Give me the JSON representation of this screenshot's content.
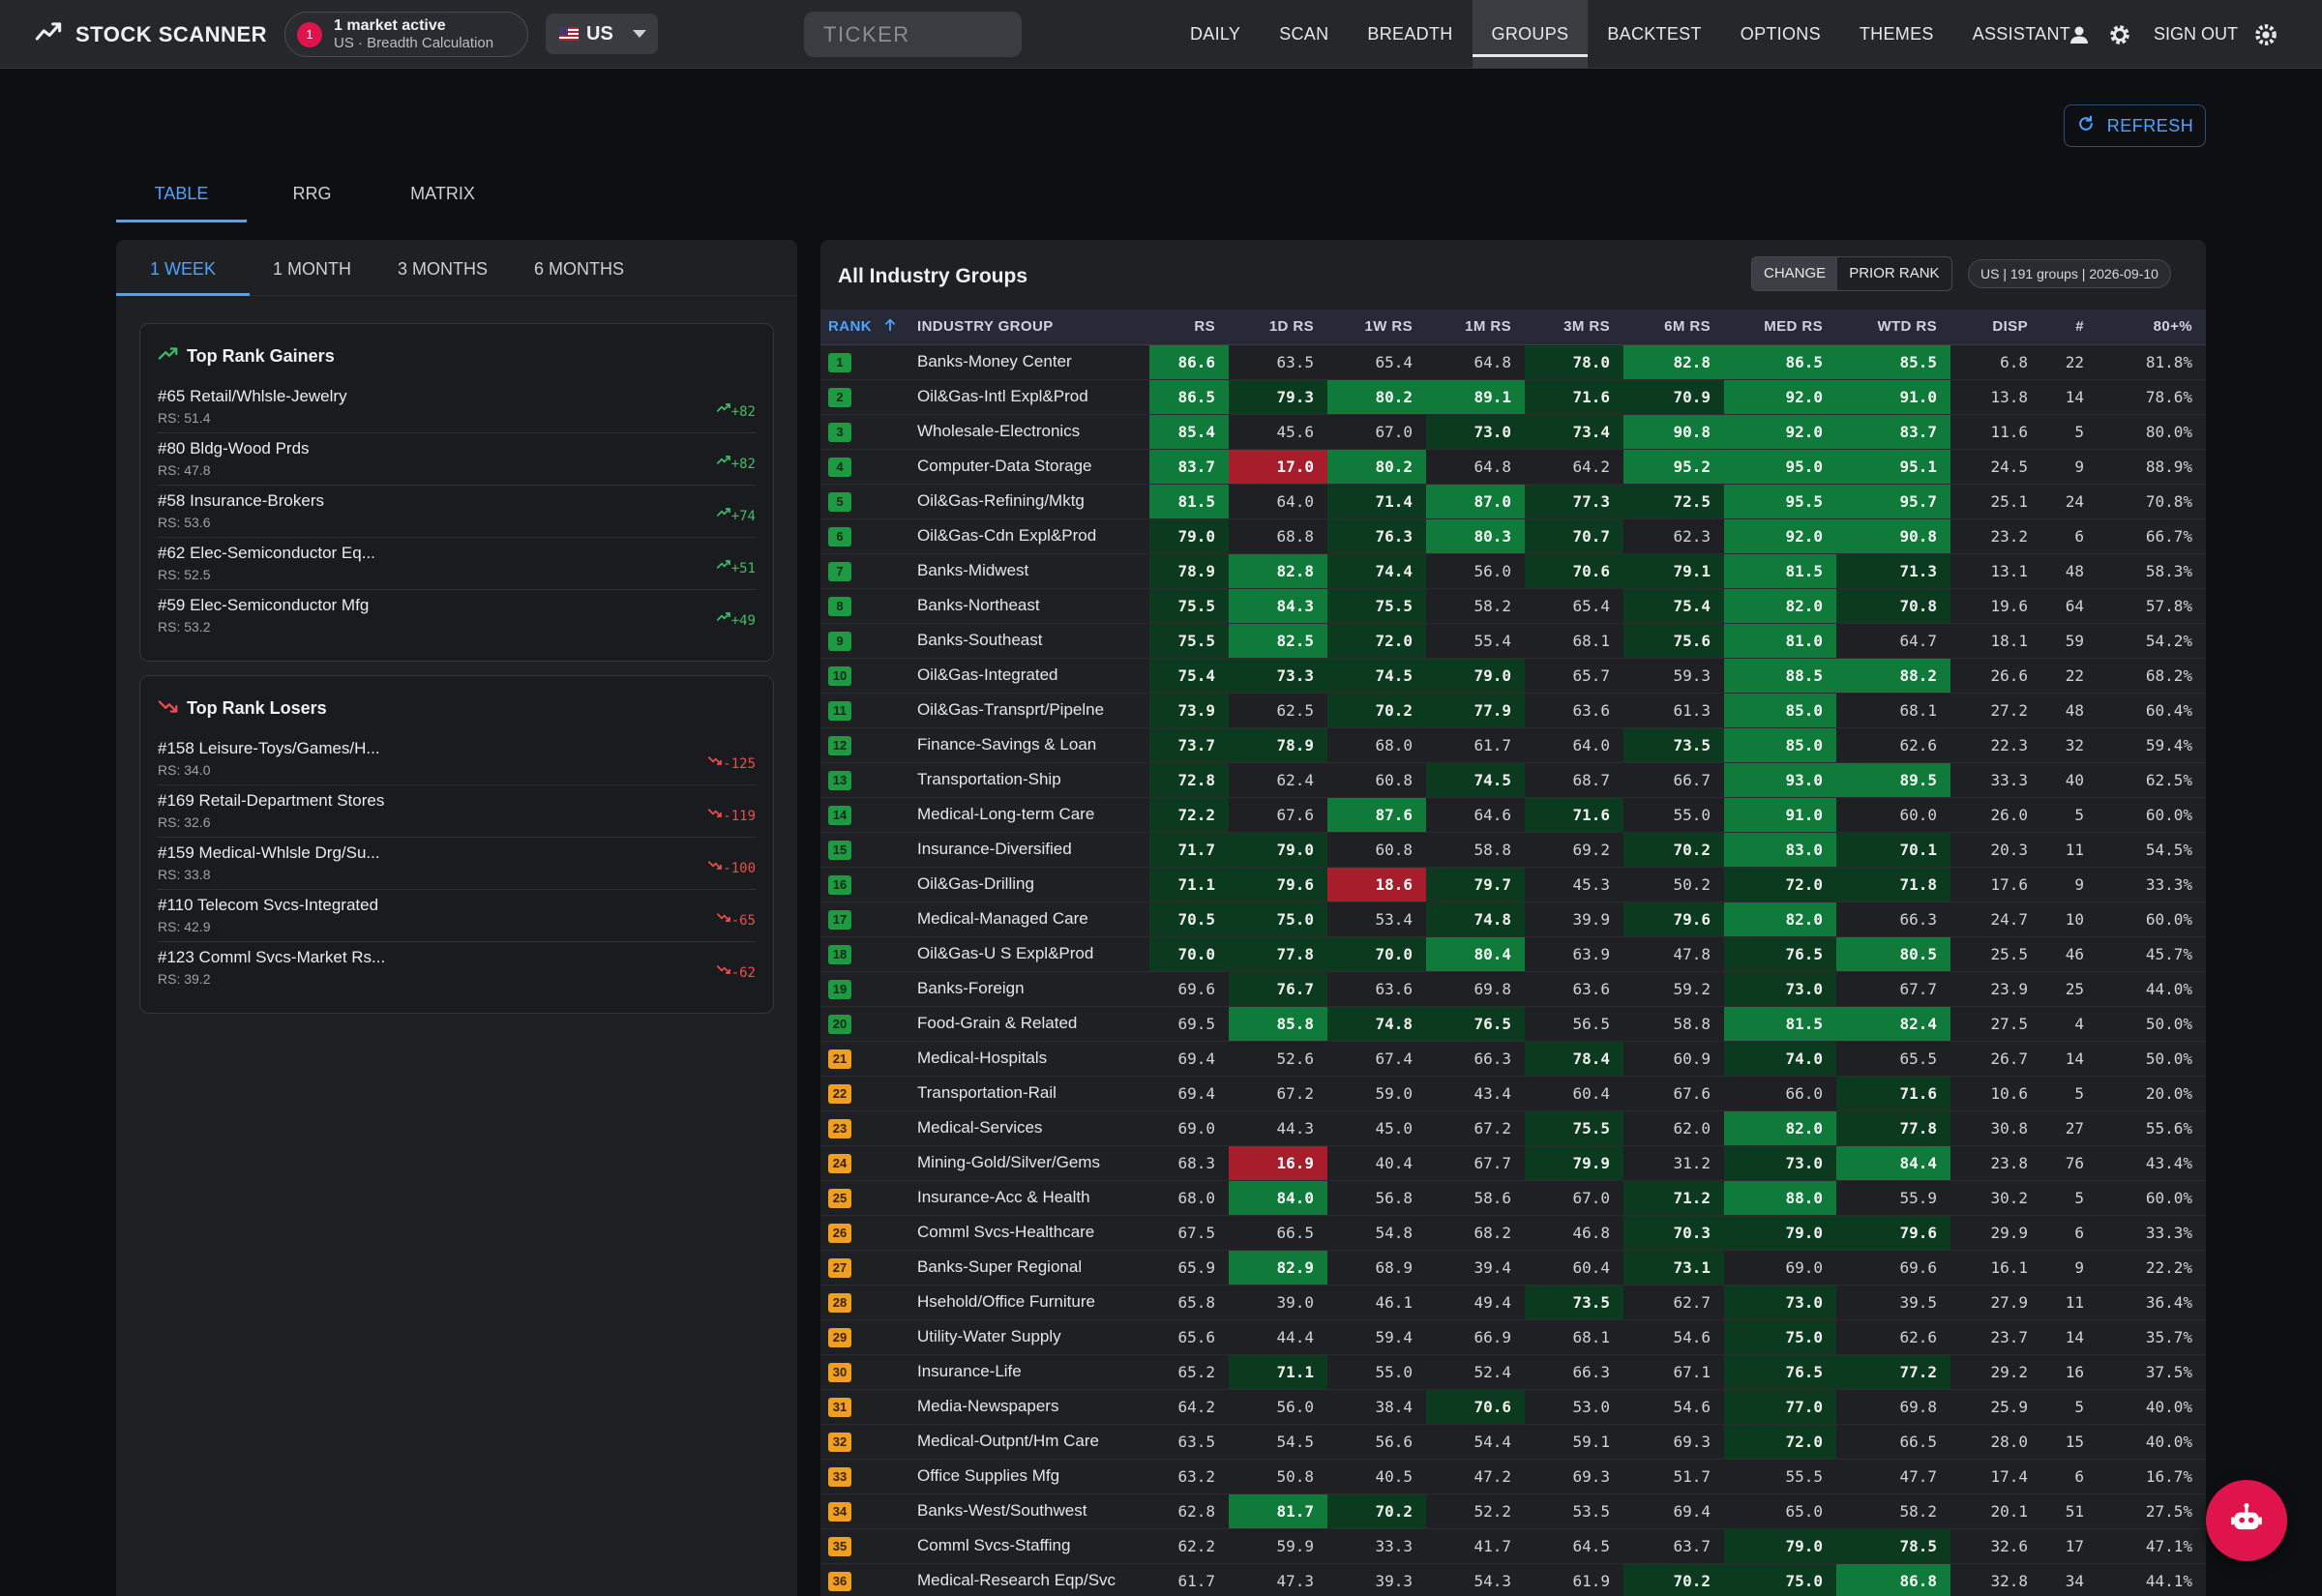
{
  "brand": {
    "title": "STOCK SCANNER"
  },
  "market_status": {
    "count": "1",
    "line1": "1 market active",
    "line2": "US · Breadth Calculation"
  },
  "country": {
    "selected": "US"
  },
  "search": {
    "placeholder": "TICKER",
    "value": ""
  },
  "nav": {
    "items": [
      {
        "label": "DAILY",
        "active": false
      },
      {
        "label": "SCAN",
        "active": false
      },
      {
        "label": "BREADTH",
        "active": false
      },
      {
        "label": "GROUPS",
        "active": true
      },
      {
        "label": "BACKTEST",
        "active": false
      },
      {
        "label": "OPTIONS",
        "active": false
      },
      {
        "label": "THEMES",
        "active": false
      },
      {
        "label": "ASSISTANT",
        "active": false
      }
    ],
    "sign_out": "SIGN OUT"
  },
  "refresh": {
    "label": "REFRESH"
  },
  "main_tabs": [
    {
      "label": "TABLE",
      "active": true
    },
    {
      "label": "RRG",
      "active": false
    },
    {
      "label": "MATRIX",
      "active": false
    }
  ],
  "period_tabs": [
    {
      "label": "1 WEEK",
      "active": true
    },
    {
      "label": "1 MONTH",
      "active": false
    },
    {
      "label": "3 MONTHS",
      "active": false
    },
    {
      "label": "6 MONTHS",
      "active": false
    }
  ],
  "gainers": {
    "title": "Top Rank Gainers",
    "items": [
      {
        "name": "#65 Retail/Whlsle-Jewelry",
        "rs": "RS: 51.4",
        "change": "+82"
      },
      {
        "name": "#80 Bldg-Wood Prds",
        "rs": "RS: 47.8",
        "change": "+82"
      },
      {
        "name": "#58 Insurance-Brokers",
        "rs": "RS: 53.6",
        "change": "+74"
      },
      {
        "name": "#62 Elec-Semiconductor Eq...",
        "rs": "RS: 52.5",
        "change": "+51"
      },
      {
        "name": "#59 Elec-Semiconductor Mfg",
        "rs": "RS: 53.2",
        "change": "+49"
      }
    ]
  },
  "losers": {
    "title": "Top Rank Losers",
    "items": [
      {
        "name": "#158 Leisure-Toys/Games/H...",
        "rs": "RS: 34.0",
        "change": "-125"
      },
      {
        "name": "#169 Retail-Department Stores",
        "rs": "RS: 32.6",
        "change": "-119"
      },
      {
        "name": "#159 Medical-Whlsle Drg/Su...",
        "rs": "RS: 33.8",
        "change": "-100"
      },
      {
        "name": "#110 Telecom Svcs-Integrated",
        "rs": "RS: 42.9",
        "change": "-65"
      },
      {
        "name": "#123 Comml Svcs-Market Rs...",
        "rs": "RS: 39.2",
        "change": "-62"
      }
    ]
  },
  "groups_table": {
    "title": "All Industry Groups",
    "toggle": [
      "CHANGE",
      "PRIOR RANK"
    ],
    "toggle_active": "CHANGE",
    "meta": "US | 191 groups | 2026-09-10",
    "columns": [
      "RANK",
      "INDUSTRY GROUP",
      "RS",
      "1D RS",
      "1W RS",
      "1M RS",
      "3M RS",
      "6M RS",
      "MED RS",
      "WTD RS",
      "DISP",
      "#",
      "80+%"
    ],
    "rows": [
      [
        "1",
        "Banks-Money Center",
        "86.6",
        "63.5",
        "65.4",
        "64.8",
        "78.0",
        "82.8",
        "86.5",
        "85.5",
        "6.8",
        "22",
        "81.8%"
      ],
      [
        "2",
        "Oil&Gas-Intl Expl&Prod",
        "86.5",
        "79.3",
        "80.2",
        "89.1",
        "71.6",
        "70.9",
        "92.0",
        "91.0",
        "13.8",
        "14",
        "78.6%"
      ],
      [
        "3",
        "Wholesale-Electronics",
        "85.4",
        "45.6",
        "67.0",
        "73.0",
        "73.4",
        "90.8",
        "92.0",
        "83.7",
        "11.6",
        "5",
        "80.0%"
      ],
      [
        "4",
        "Computer-Data Storage",
        "83.7",
        "17.0",
        "80.2",
        "64.8",
        "64.2",
        "95.2",
        "95.0",
        "95.1",
        "24.5",
        "9",
        "88.9%"
      ],
      [
        "5",
        "Oil&Gas-Refining/Mktg",
        "81.5",
        "64.0",
        "71.4",
        "87.0",
        "77.3",
        "72.5",
        "95.5",
        "95.7",
        "25.1",
        "24",
        "70.8%"
      ],
      [
        "6",
        "Oil&Gas-Cdn Expl&Prod",
        "79.0",
        "68.8",
        "76.3",
        "80.3",
        "70.7",
        "62.3",
        "92.0",
        "90.8",
        "23.2",
        "6",
        "66.7%"
      ],
      [
        "7",
        "Banks-Midwest",
        "78.9",
        "82.8",
        "74.4",
        "56.0",
        "70.6",
        "79.1",
        "81.5",
        "71.3",
        "13.1",
        "48",
        "58.3%"
      ],
      [
        "8",
        "Banks-Northeast",
        "75.5",
        "84.3",
        "75.5",
        "58.2",
        "65.4",
        "75.4",
        "82.0",
        "70.8",
        "19.6",
        "64",
        "57.8%"
      ],
      [
        "9",
        "Banks-Southeast",
        "75.5",
        "82.5",
        "72.0",
        "55.4",
        "68.1",
        "75.6",
        "81.0",
        "64.7",
        "18.1",
        "59",
        "54.2%"
      ],
      [
        "10",
        "Oil&Gas-Integrated",
        "75.4",
        "73.3",
        "74.5",
        "79.0",
        "65.7",
        "59.3",
        "88.5",
        "88.2",
        "26.6",
        "22",
        "68.2%"
      ],
      [
        "11",
        "Oil&Gas-Transprt/Pipelne",
        "73.9",
        "62.5",
        "70.2",
        "77.9",
        "63.6",
        "61.3",
        "85.0",
        "68.1",
        "27.2",
        "48",
        "60.4%"
      ],
      [
        "12",
        "Finance-Savings & Loan",
        "73.7",
        "78.9",
        "68.0",
        "61.7",
        "64.0",
        "73.5",
        "85.0",
        "62.6",
        "22.3",
        "32",
        "59.4%"
      ],
      [
        "13",
        "Transportation-Ship",
        "72.8",
        "62.4",
        "60.8",
        "74.5",
        "68.7",
        "66.7",
        "93.0",
        "89.5",
        "33.3",
        "40",
        "62.5%"
      ],
      [
        "14",
        "Medical-Long-term Care",
        "72.2",
        "67.6",
        "87.6",
        "64.6",
        "71.6",
        "55.0",
        "91.0",
        "60.0",
        "26.0",
        "5",
        "60.0%"
      ],
      [
        "15",
        "Insurance-Diversified",
        "71.7",
        "79.0",
        "60.8",
        "58.8",
        "69.2",
        "70.2",
        "83.0",
        "70.1",
        "20.3",
        "11",
        "54.5%"
      ],
      [
        "16",
        "Oil&Gas-Drilling",
        "71.1",
        "79.6",
        "18.6",
        "79.7",
        "45.3",
        "50.2",
        "72.0",
        "71.8",
        "17.6",
        "9",
        "33.3%"
      ],
      [
        "17",
        "Medical-Managed Care",
        "70.5",
        "75.0",
        "53.4",
        "74.8",
        "39.9",
        "79.6",
        "82.0",
        "66.3",
        "24.7",
        "10",
        "60.0%"
      ],
      [
        "18",
        "Oil&Gas-U S Expl&Prod",
        "70.0",
        "77.8",
        "70.0",
        "80.4",
        "63.9",
        "47.8",
        "76.5",
        "80.5",
        "25.5",
        "46",
        "45.7%"
      ],
      [
        "19",
        "Banks-Foreign",
        "69.6",
        "76.7",
        "63.6",
        "69.8",
        "63.6",
        "59.2",
        "73.0",
        "67.7",
        "23.9",
        "25",
        "44.0%"
      ],
      [
        "20",
        "Food-Grain & Related",
        "69.5",
        "85.8",
        "74.8",
        "76.5",
        "56.5",
        "58.8",
        "81.5",
        "82.4",
        "27.5",
        "4",
        "50.0%"
      ],
      [
        "21",
        "Medical-Hospitals",
        "69.4",
        "52.6",
        "67.4",
        "66.3",
        "78.4",
        "60.9",
        "74.0",
        "65.5",
        "26.7",
        "14",
        "50.0%"
      ],
      [
        "22",
        "Transportation-Rail",
        "69.4",
        "67.2",
        "59.0",
        "43.4",
        "60.4",
        "67.6",
        "66.0",
        "71.6",
        "10.6",
        "5",
        "20.0%"
      ],
      [
        "23",
        "Medical-Services",
        "69.0",
        "44.3",
        "45.0",
        "67.2",
        "75.5",
        "62.0",
        "82.0",
        "77.8",
        "30.8",
        "27",
        "55.6%"
      ],
      [
        "24",
        "Mining-Gold/Silver/Gems",
        "68.3",
        "16.9",
        "40.4",
        "67.7",
        "79.9",
        "31.2",
        "73.0",
        "84.4",
        "23.8",
        "76",
        "43.4%"
      ],
      [
        "25",
        "Insurance-Acc & Health",
        "68.0",
        "84.0",
        "56.8",
        "58.6",
        "67.0",
        "71.2",
        "88.0",
        "55.9",
        "30.2",
        "5",
        "60.0%"
      ],
      [
        "26",
        "Comml Svcs-Healthcare",
        "67.5",
        "66.5",
        "54.8",
        "68.2",
        "46.8",
        "70.3",
        "79.0",
        "79.6",
        "29.9",
        "6",
        "33.3%"
      ],
      [
        "27",
        "Banks-Super Regional",
        "65.9",
        "82.9",
        "68.9",
        "39.4",
        "60.4",
        "73.1",
        "69.0",
        "69.6",
        "16.1",
        "9",
        "22.2%"
      ],
      [
        "28",
        "Hsehold/Office Furniture",
        "65.8",
        "39.0",
        "46.1",
        "49.4",
        "73.5",
        "62.7",
        "73.0",
        "39.5",
        "27.9",
        "11",
        "36.4%"
      ],
      [
        "29",
        "Utility-Water Supply",
        "65.6",
        "44.4",
        "59.4",
        "66.9",
        "68.1",
        "54.6",
        "75.0",
        "62.6",
        "23.7",
        "14",
        "35.7%"
      ],
      [
        "30",
        "Insurance-Life",
        "65.2",
        "71.1",
        "55.0",
        "52.4",
        "66.3",
        "67.1",
        "76.5",
        "77.2",
        "29.2",
        "16",
        "37.5%"
      ],
      [
        "31",
        "Media-Newspapers",
        "64.2",
        "56.0",
        "38.4",
        "70.6",
        "53.0",
        "54.6",
        "77.0",
        "69.8",
        "25.9",
        "5",
        "40.0%"
      ],
      [
        "32",
        "Medical-Outpnt/Hm Care",
        "63.5",
        "54.5",
        "56.6",
        "54.4",
        "59.1",
        "69.3",
        "72.0",
        "66.5",
        "28.0",
        "15",
        "40.0%"
      ],
      [
        "33",
        "Office Supplies Mfg",
        "63.2",
        "50.8",
        "40.5",
        "47.2",
        "69.3",
        "51.7",
        "55.5",
        "47.7",
        "17.4",
        "6",
        "16.7%"
      ],
      [
        "34",
        "Banks-West/Southwest",
        "62.8",
        "81.7",
        "70.2",
        "52.2",
        "53.5",
        "69.4",
        "65.0",
        "58.2",
        "20.1",
        "51",
        "27.5%"
      ],
      [
        "35",
        "Comml Svcs-Staffing",
        "62.2",
        "59.9",
        "33.3",
        "41.7",
        "64.5",
        "63.7",
        "79.0",
        "78.5",
        "32.6",
        "17",
        "47.1%"
      ],
      [
        "36",
        "Medical-Research Eqp/Svc",
        "61.7",
        "47.3",
        "39.3",
        "54.3",
        "61.9",
        "70.2",
        "75.0",
        "86.8",
        "32.8",
        "34",
        "44.1%"
      ]
    ]
  },
  "colors": {
    "accent": "#4da3ff",
    "brand_red": "#e0144c",
    "green_high": "#0f7a3a",
    "green_mid": "#0b3a1f",
    "red_low": "#a81d2c",
    "rank_green": "#1e9a43",
    "rank_orange": "#f0a020"
  },
  "icons": [
    "trend-icon",
    "user-icon",
    "gear-icon",
    "settings-sun-icon",
    "refresh-icon",
    "sort-up-icon",
    "trending-up-icon",
    "trending-down-icon",
    "robot-icon"
  ]
}
